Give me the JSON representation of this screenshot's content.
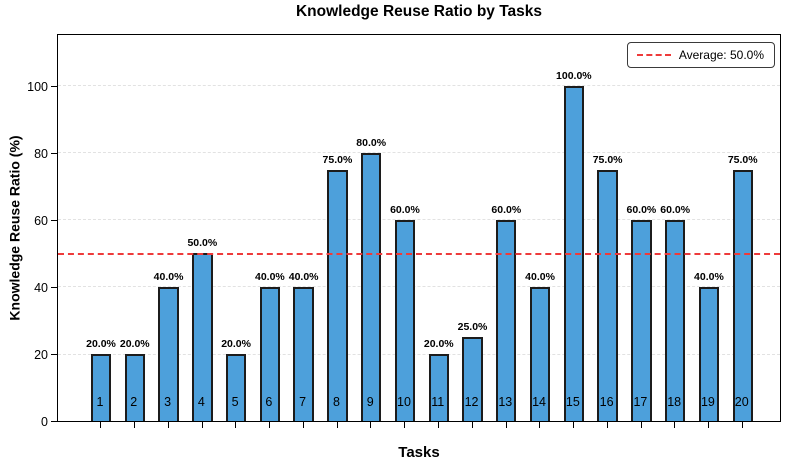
{
  "chart_data": {
    "type": "bar",
    "title": "Knowledge Reuse Ratio by Tasks",
    "xlabel": "Tasks",
    "ylabel": "Knowledge Reuse Ratio (%)",
    "categories": [
      "1",
      "2",
      "3",
      "4",
      "5",
      "6",
      "7",
      "8",
      "9",
      "10",
      "11",
      "12",
      "13",
      "14",
      "15",
      "16",
      "17",
      "18",
      "19",
      "20"
    ],
    "values": [
      20,
      20,
      40,
      50,
      20,
      40,
      40,
      75,
      80,
      60,
      20,
      25,
      60,
      40,
      100,
      75,
      60,
      60,
      40,
      75
    ],
    "bar_labels": [
      "20.0%",
      "20.0%",
      "40.0%",
      "50.0%",
      "20.0%",
      "40.0%",
      "40.0%",
      "75.0%",
      "80.0%",
      "60.0%",
      "20.0%",
      "25.0%",
      "60.0%",
      "40.0%",
      "100.0%",
      "75.0%",
      "60.0%",
      "60.0%",
      "40.0%",
      "75.0%"
    ],
    "yticks": [
      0,
      20,
      40,
      60,
      80,
      100
    ],
    "ylim": [
      0,
      115.8
    ],
    "average": 50.0,
    "average_label": "Average: 50.0%",
    "legend_position": "upper right",
    "grid": "horizontal dashed",
    "colors": {
      "bar_fill": "#4da0db",
      "bar_edge": "#1c1c1c",
      "average_line": "#ee3a3a",
      "grid_line": "#e2e2e2",
      "text": "#000000",
      "background": "#ffffff"
    }
  }
}
